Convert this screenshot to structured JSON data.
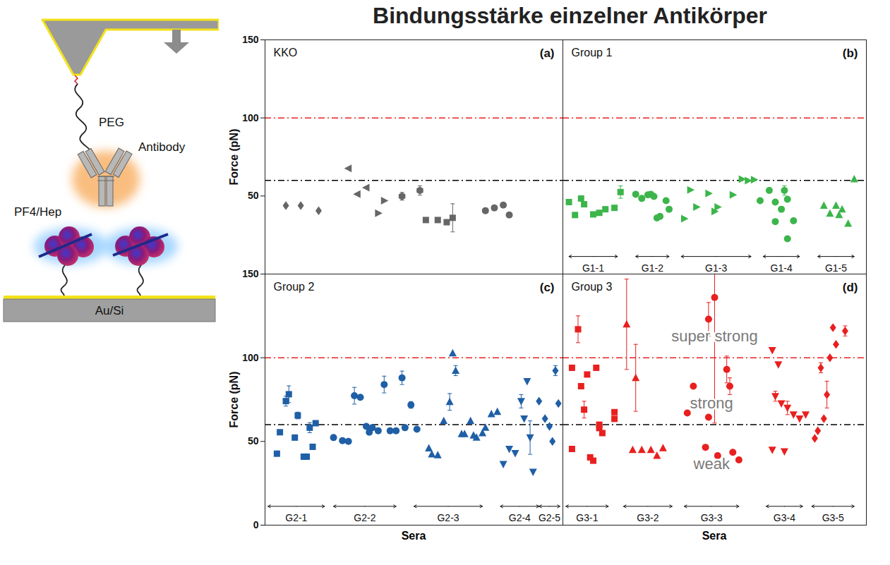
{
  "title": "Bindungsstärke einzelner Antikörper",
  "schematic": {
    "peg": "PEG",
    "antibody": "Antibody",
    "pf4_hep": "PF4/Hep",
    "substrate": "Au/Si"
  },
  "chart_data": [
    {
      "type": "scatter",
      "title": "KKO",
      "panel_label": "(a)",
      "ylabel": "Force (pN)",
      "xlim": [
        0,
        100
      ],
      "ylim": [
        0,
        150
      ],
      "yticks": [
        50,
        100,
        150
      ],
      "tick_labels": "y",
      "reference_lines": [
        {
          "value": 100,
          "color": "#e8201f",
          "line_style": "dashdot"
        },
        {
          "value": 60,
          "color": "#000000",
          "line_style": "dashdot"
        }
      ],
      "series": [
        {
          "marker": "diamond",
          "color": "#666666",
          "x": [
            7,
            12,
            18
          ],
          "values": [
            43.8,
            43.8,
            40.6
          ],
          "errors": [
            null,
            null,
            null
          ]
        },
        {
          "marker": "triangle-left",
          "color": "#666666",
          "x": [
            28,
            31,
            34
          ],
          "values": [
            67.7,
            51.2,
            55.3
          ],
          "errors": [
            null,
            null,
            null
          ]
        },
        {
          "marker": "triangle-right",
          "color": "#666666",
          "x": [
            38,
            40
          ],
          "values": [
            39,
            47
          ],
          "errors": [
            null,
            null
          ]
        },
        {
          "marker": "hexagon",
          "color": "#666666",
          "x": [
            46,
            52
          ],
          "values": [
            49.8,
            53.5
          ],
          "errors": [
            2.5,
            3
          ]
        },
        {
          "marker": "square",
          "color": "#666666",
          "x": [
            54,
            58,
            61,
            63
          ],
          "values": [
            34.6,
            34.6,
            33.2,
            36
          ],
          "errors": [
            null,
            null,
            null,
            9
          ]
        },
        {
          "marker": "circle",
          "color": "#666666",
          "x": [
            74,
            77,
            80,
            82
          ],
          "values": [
            40.6,
            42.4,
            44.2,
            37.8
          ],
          "errors": [
            null,
            null,
            null,
            null
          ]
        }
      ]
    },
    {
      "type": "scatter",
      "title": "Group 1",
      "panel_label": "(b)",
      "xlim": [
        0,
        100
      ],
      "ylim": [
        0,
        150
      ],
      "tick_labels": false,
      "reference_lines": [
        {
          "value": 100,
          "color": "#e8201f",
          "line_style": "dashdot"
        },
        {
          "value": 60,
          "color": "#000000",
          "line_style": "dashdot"
        }
      ],
      "series": [
        {
          "name": "G1-1",
          "marker": "square",
          "color": "#3cb54a",
          "span": [
            2,
            18
          ],
          "x": [
            2,
            4,
            6,
            7,
            10,
            12,
            14,
            17,
            19
          ],
          "values": [
            46.1,
            37.8,
            48.4,
            44.7,
            38.2,
            39.2,
            41.5,
            42.4,
            52.5
          ],
          "errors": [
            null,
            null,
            null,
            null,
            null,
            null,
            null,
            null,
            4
          ]
        },
        {
          "name": "G1-2",
          "marker": "circle",
          "color": "#3cb54a",
          "span": [
            24,
            35
          ],
          "x": [
            24,
            26,
            28,
            29,
            30,
            31,
            32,
            34,
            35
          ],
          "values": [
            51.1,
            48.4,
            50.7,
            51.1,
            49.7,
            35.9,
            36.9,
            47,
            41.5
          ],
          "errors": [
            null,
            null,
            null,
            null,
            null,
            null,
            null,
            null,
            null
          ]
        },
        {
          "name": "G1-3",
          "marker": "triangle-right",
          "color": "#3cb54a",
          "span": [
            39,
            62
          ],
          "x": [
            40,
            42,
            44,
            48,
            50,
            51,
            56,
            59,
            61,
            63
          ],
          "values": [
            35.5,
            53.9,
            42.9,
            51.6,
            40.1,
            42.9,
            50.7,
            60.8,
            59.9,
            60.4
          ],
          "errors": [
            null,
            null,
            null,
            null,
            null,
            null,
            null,
            null,
            null,
            null
          ]
        },
        {
          "name": "G1-4",
          "marker": "circle",
          "color": "#3cb54a",
          "span": [
            66,
            78
          ],
          "x": [
            65,
            68,
            70,
            72,
            73,
            74,
            70,
            74,
            76
          ],
          "values": [
            47,
            53.5,
            46.1,
            41.5,
            53.5,
            47.9,
            33.6,
            22.6,
            34.1
          ],
          "errors": [
            null,
            null,
            null,
            null,
            3,
            null,
            null,
            null,
            null
          ]
        },
        {
          "name": "G1-5",
          "marker": "triangle",
          "color": "#3cb54a",
          "span": [
            84,
            96
          ],
          "x": [
            86,
            88,
            90,
            91,
            92,
            94,
            96
          ],
          "values": [
            43.8,
            38.7,
            43.8,
            37.8,
            41.5,
            32.3,
            60.8
          ],
          "errors": [
            null,
            null,
            null,
            null,
            null,
            null,
            null
          ]
        }
      ]
    },
    {
      "type": "scatter",
      "title": "Group 2",
      "panel_label": "(c)",
      "ylabel": "Force (pN)",
      "xlabel": "Sera",
      "xlim": [
        0,
        100
      ],
      "ylim": [
        0,
        150
      ],
      "yticks": [
        0,
        50,
        100,
        150
      ],
      "tick_labels": "y",
      "reference_lines": [
        {
          "value": 100,
          "color": "#e8201f",
          "line_style": "dashdot"
        },
        {
          "value": 60,
          "color": "#000000",
          "line_style": "dashdot"
        }
      ],
      "series": [
        {
          "name": "G2-1",
          "marker": "square",
          "color": "#1f5fa6",
          "span": [
            1,
            20
          ],
          "x": [
            4,
            5,
            7,
            8,
            10,
            11,
            13,
            14,
            15,
            16,
            17
          ],
          "values": [
            42.7,
            55.5,
            74.1,
            78.2,
            52.3,
            65.5,
            40.9,
            40.9,
            58.2,
            46.8,
            60.9
          ],
          "errors": [
            1.5,
            null,
            3,
            5,
            null,
            2,
            null,
            null,
            3,
            null,
            null
          ]
        },
        {
          "name": "G2-2",
          "marker": "circle",
          "color": "#1f5fa6",
          "span": [
            23,
            44
          ],
          "x": [
            23,
            26,
            28,
            30,
            32,
            34,
            35,
            36,
            38,
            40,
            42,
            44,
            46,
            47,
            49,
            51
          ],
          "values": [
            52.3,
            50.5,
            50,
            77.3,
            76.4,
            59,
            55.5,
            58.2,
            56.4,
            84,
            56.4,
            56.4,
            88,
            58.2,
            71.8,
            57.3
          ],
          "errors": [
            null,
            null,
            null,
            5,
            null,
            null,
            null,
            null,
            null,
            5,
            null,
            null,
            4,
            null,
            2,
            null
          ]
        },
        {
          "name": "G2-3",
          "marker": "triangle",
          "color": "#1f5fa6",
          "span": [
            50,
            73
          ],
          "x": [
            55,
            56,
            58,
            60,
            62,
            63,
            64,
            66,
            67,
            69,
            70,
            71,
            73,
            74,
            76,
            78
          ],
          "values": [
            45.9,
            42.3,
            41.8,
            62.3,
            73.6,
            102.7,
            92.3,
            54.5,
            54.5,
            62.3,
            53.6,
            52.3,
            55,
            58.2,
            66.4,
            67.7
          ],
          "errors": [
            null,
            null,
            null,
            null,
            5,
            null,
            3,
            null,
            null,
            null,
            null,
            null,
            null,
            null,
            null,
            null
          ]
        },
        {
          "name": "G2-4",
          "marker": "triangle-down",
          "color": "#1f5fa6",
          "span": [
            79,
            92
          ],
          "x": [
            80,
            82,
            84,
            86,
            87,
            88,
            89,
            90
          ],
          "values": [
            36.4,
            45.5,
            43,
            74,
            63.6,
            86,
            52.3,
            31.8
          ],
          "errors": [
            null,
            null,
            null,
            4,
            null,
            null,
            10,
            null
          ]
        },
        {
          "name": "G2-5",
          "marker": "diamond",
          "color": "#1f5fa6",
          "span": [
            92,
            99
          ],
          "x": [
            92,
            94,
            95.5,
            96.5,
            97.5,
            98.5
          ],
          "values": [
            74.1,
            63.6,
            59,
            50,
            92.3,
            72.7
          ],
          "errors": [
            null,
            null,
            null,
            null,
            3,
            null
          ]
        }
      ]
    },
    {
      "type": "scatter",
      "title": "Group 3",
      "panel_label": "(d)",
      "xlabel": "Sera",
      "xlim": [
        0,
        100
      ],
      "ylim": [
        0,
        150
      ],
      "tick_labels": false,
      "reference_lines": [
        {
          "value": 100,
          "color": "#e8201f",
          "line_style": "dashdot"
        },
        {
          "value": 60,
          "color": "#000000",
          "line_style": "dashdot"
        }
      ],
      "annotations": [
        {
          "text": "super strong",
          "x": 50,
          "y": 112.7
        },
        {
          "text": "strong",
          "x": 49,
          "y": 72.7
        },
        {
          "text": "weak",
          "x": 49,
          "y": 36.4
        }
      ],
      "series": [
        {
          "name": "G3-1",
          "marker": "square",
          "color": "#e8201f",
          "span": [
            1,
            15
          ],
          "x": [
            3,
            3,
            5,
            6,
            7,
            8,
            9,
            10,
            11,
            12,
            12,
            13,
            17,
            17
          ],
          "values": [
            94,
            45.5,
            117,
            83,
            69,
            90,
            40.5,
            38.5,
            94,
            58,
            60,
            55,
            67.5,
            63.5
          ],
          "errors": [
            null,
            null,
            8,
            null,
            5,
            null,
            null,
            null,
            null,
            null,
            null,
            null,
            null,
            null
          ]
        },
        {
          "name": "G3-2",
          "marker": "triangle",
          "color": "#e8201f",
          "span": [
            20,
            36
          ],
          "x": [
            21,
            24,
            23,
            26,
            29,
            31,
            33
          ],
          "values": [
            120,
            88,
            45,
            45,
            45,
            41.5,
            46
          ],
          "errors": [
            27,
            20,
            null,
            null,
            null,
            null,
            null
          ]
        },
        {
          "name": "G3-3",
          "marker": "circle",
          "color": "#e8201f",
          "span": [
            40,
            58
          ],
          "x": [
            41,
            43,
            47,
            48,
            48,
            50,
            51,
            54,
            55,
            56,
            58
          ],
          "values": [
            67,
            83,
            46.5,
            123,
            64.5,
            136,
            41.5,
            93,
            83,
            43.5,
            39
          ],
          "errors": [
            null,
            null,
            null,
            10,
            null,
            75,
            null,
            8,
            5,
            null,
            null
          ]
        },
        {
          "name": "G3-4",
          "marker": "triangle-down",
          "color": "#e8201f",
          "span": [
            67,
            79
          ],
          "x": [
            69,
            71,
            69,
            73,
            70,
            72,
            74,
            76,
            78,
            80
          ],
          "values": [
            104.5,
            96,
            45,
            44,
            77,
            72.7,
            70,
            66,
            63.6,
            66
          ],
          "errors": [
            null,
            null,
            null,
            null,
            3,
            null,
            4,
            null,
            null,
            null
          ]
        },
        {
          "name": "G3-5",
          "marker": "diamond",
          "color": "#e8201f",
          "span": [
            82,
            96
          ],
          "x": [
            83,
            84,
            86,
            87,
            85,
            88,
            89,
            90,
            93
          ],
          "values": [
            51.8,
            56.4,
            63.6,
            78,
            94,
            100,
            118,
            108,
            116
          ],
          "errors": [
            null,
            null,
            null,
            8,
            3,
            null,
            null,
            null,
            3
          ]
        }
      ]
    }
  ]
}
